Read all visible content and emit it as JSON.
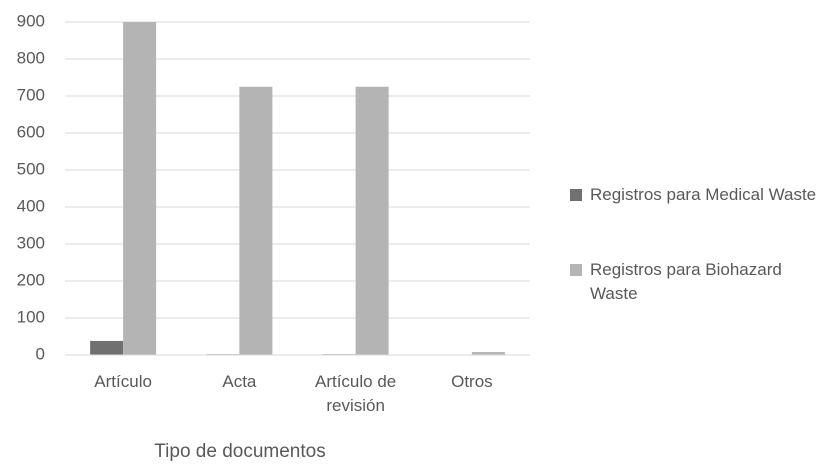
{
  "chart_data": {
    "type": "bar",
    "x_label": "Tipo de documentos",
    "categories": [
      "Artículo",
      "Acta",
      "Artículo de revisión",
      "Otros"
    ],
    "series": [
      {
        "name": "Registros para Medical Waste",
        "color": "#707070",
        "values": [
          38,
          2,
          2,
          1
        ]
      },
      {
        "name": "Registros para Biohazard Waste",
        "color": "#b4b4b4",
        "values": [
          900,
          725,
          725,
          8
        ]
      }
    ],
    "ylim": [
      0,
      900
    ],
    "yticks": [
      0,
      100,
      200,
      300,
      400,
      500,
      600,
      700,
      800,
      900
    ],
    "grid": true,
    "legend": "right"
  }
}
